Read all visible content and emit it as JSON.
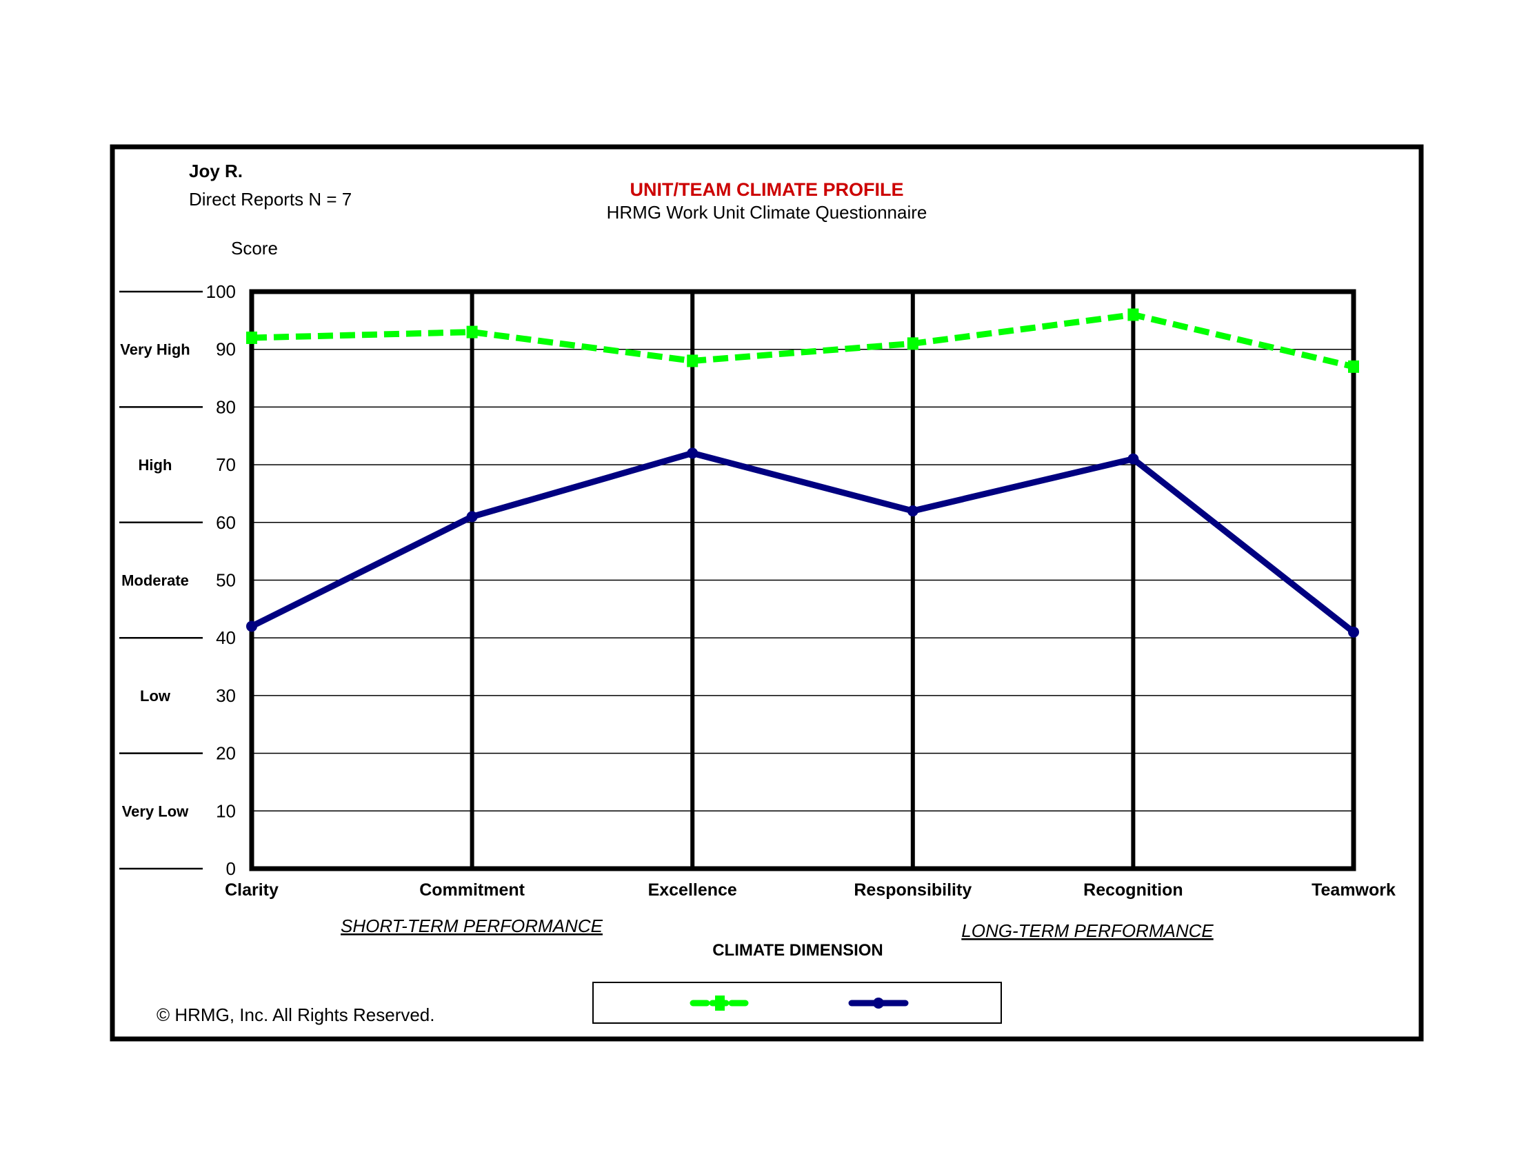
{
  "header": {
    "name": "Joy R.",
    "subtitle": "Direct Reports N = 7"
  },
  "footer": {
    "copyright": "©  HRMG, Inc.  All Rights Reserved."
  },
  "chart_data": {
    "type": "line",
    "title": "UNIT/TEAM CLIMATE PROFILE",
    "subtitle": "HRMG Work Unit Climate Questionnaire",
    "title_color": "#cc0000",
    "ylabel": "Score",
    "xlabel": "CLIMATE DIMENSION",
    "ylim": [
      0,
      100
    ],
    "yticks": [
      "0",
      "10",
      "20",
      "30",
      "40",
      "50",
      "60",
      "70",
      "80",
      "90",
      "100"
    ],
    "grid": true,
    "categories": [
      "Clarity",
      "Commitment",
      "Excellence",
      "Responsibility",
      "Recognition",
      "Teamwork"
    ],
    "group_labels": [
      "SHORT-TERM PERFORMANCE",
      "LONG-TERM PERFORMANCE"
    ],
    "bands": [
      "Very High",
      "High",
      "Moderate",
      "Low",
      "Very Low"
    ],
    "series": [
      {
        "values": [
          92,
          93,
          88,
          91,
          96,
          87
        ],
        "color": "#00ff00",
        "style": "dashed",
        "marker": "square"
      },
      {
        "values": [
          42,
          61,
          72,
          62,
          71,
          41
        ],
        "color": "#000080",
        "style": "solid",
        "marker": "circle"
      }
    ],
    "legend": "bottom-center"
  }
}
